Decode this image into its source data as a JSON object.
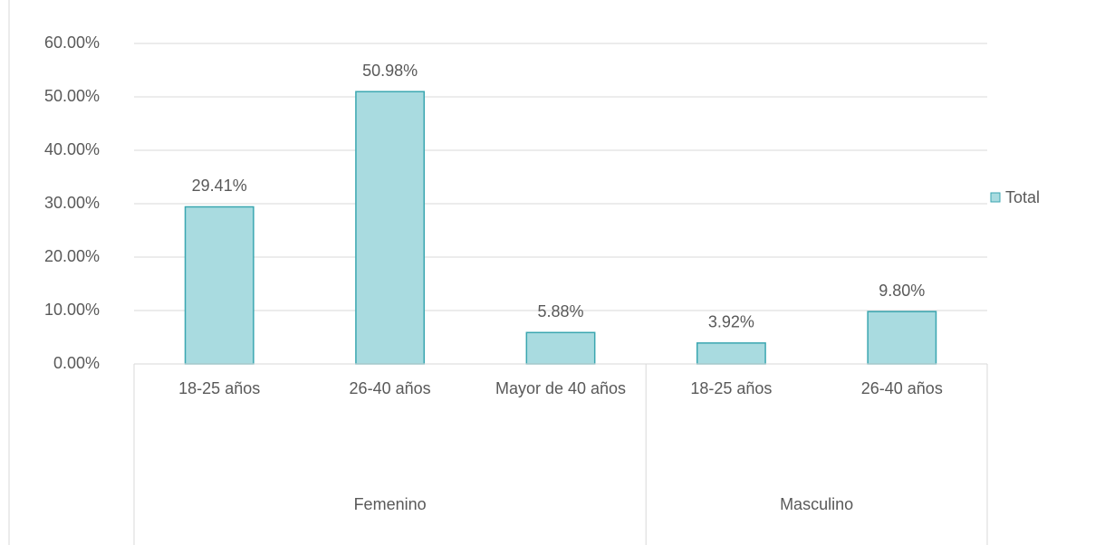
{
  "chart_data": {
    "type": "bar",
    "groups": [
      {
        "label": "Femenino",
        "categories": [
          "18-25 años",
          "26-40 años",
          "Mayor de 40 años"
        ]
      },
      {
        "label": "Masculino",
        "categories": [
          "18-25 años",
          "26-40 años"
        ]
      }
    ],
    "series": [
      {
        "name": "Total",
        "color": "#a9dbe0",
        "stroke": "#3aa6b0",
        "values": [
          29.41,
          50.98,
          5.88,
          3.92,
          9.8
        ],
        "value_labels": [
          "29.41%",
          "50.98%",
          "5.88%",
          "3.92%",
          "9.80%"
        ]
      }
    ],
    "ylim": [
      0,
      60
    ],
    "yticks": [
      {
        "value": 0,
        "label": "0.00%"
      },
      {
        "value": 10,
        "label": "10.00%"
      },
      {
        "value": 20,
        "label": "20.00%"
      },
      {
        "value": 30,
        "label": "30.00%"
      },
      {
        "value": 40,
        "label": "40.00%"
      },
      {
        "value": 50,
        "label": "50.00%"
      },
      {
        "value": 60,
        "label": "60.00%"
      }
    ],
    "grid": true,
    "legend": "right"
  }
}
